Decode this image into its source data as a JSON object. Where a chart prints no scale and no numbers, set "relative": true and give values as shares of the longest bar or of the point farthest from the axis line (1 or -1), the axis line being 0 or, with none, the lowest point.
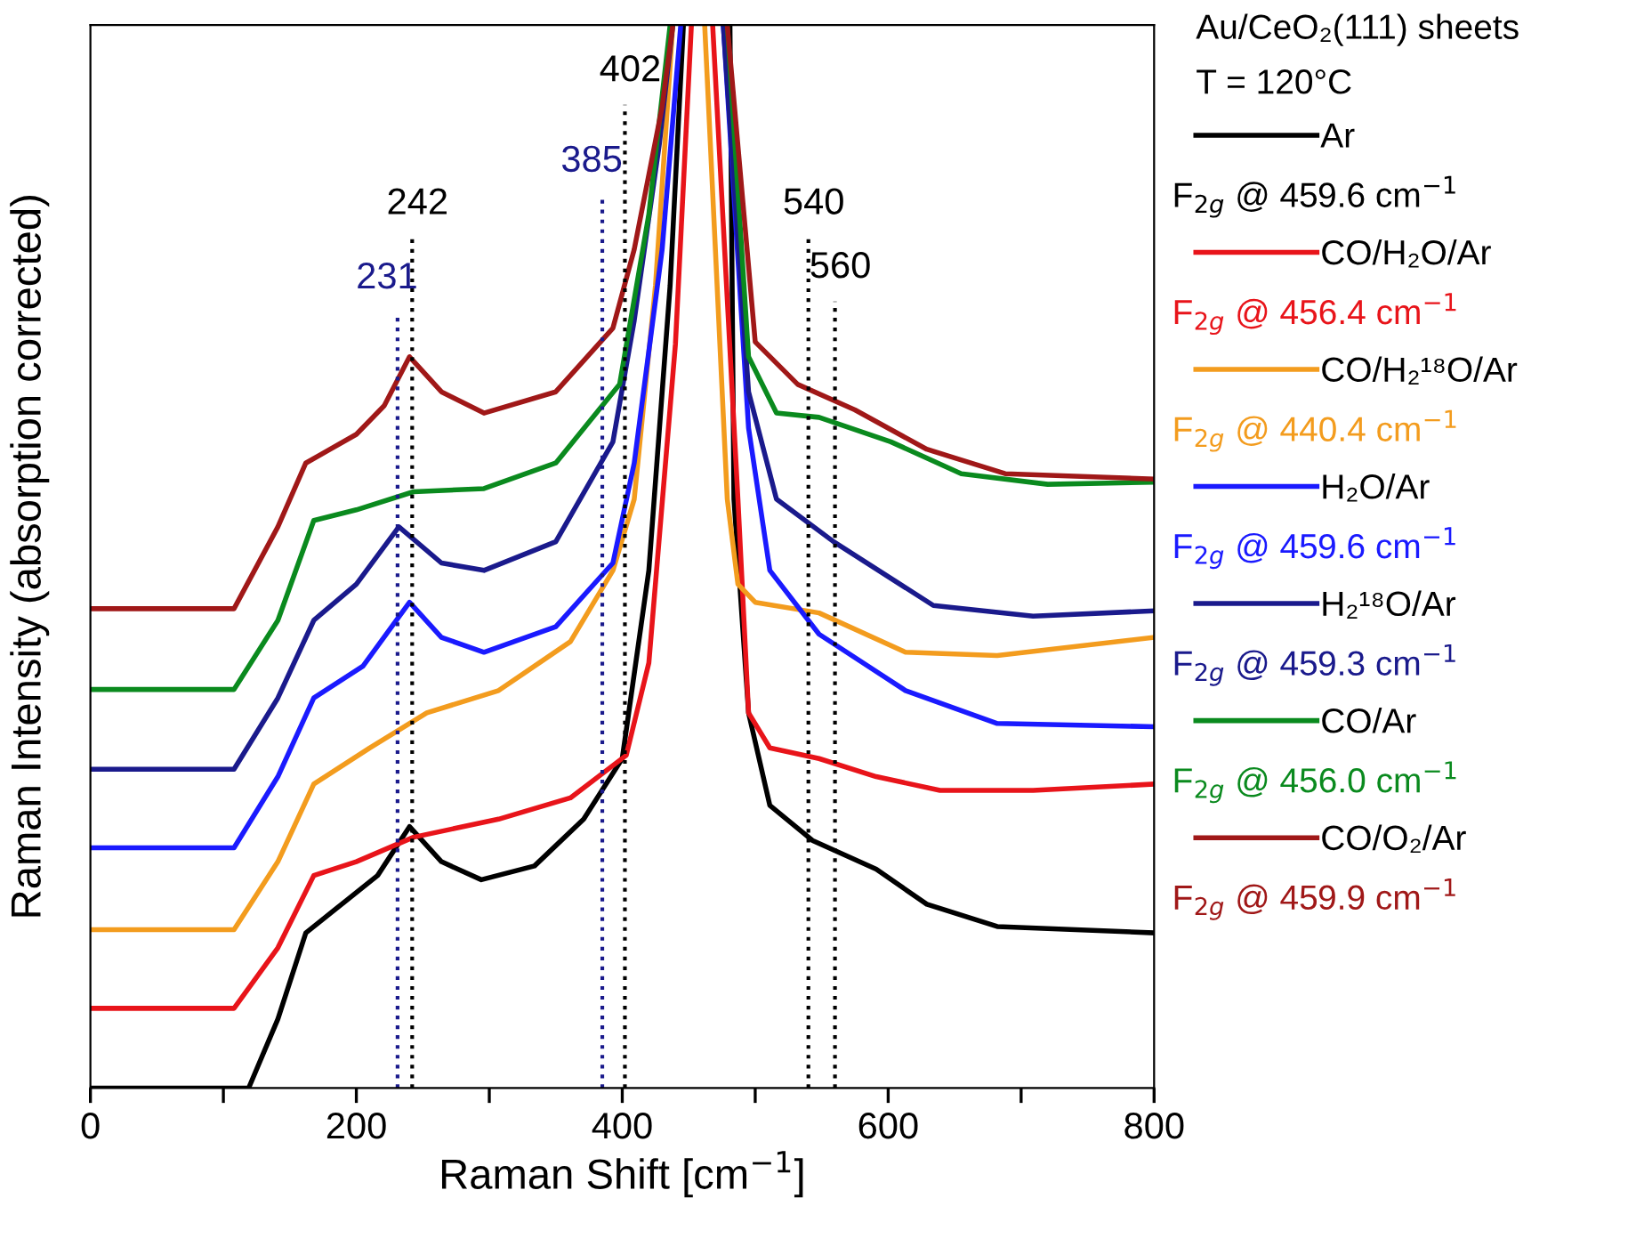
{
  "chart_data": {
    "type": "line",
    "relative": true,
    "xlabel": "Raman Shift [cm$^{−1}$]",
    "ylabel": "Raman Intensity (absorption corrected)",
    "xlim": [
      0,
      800
    ],
    "xticks": [
      0,
      {
        "value": 100,
        "label": null
      },
      200,
      {
        "value": 300,
        "label": null
      },
      400,
      {
        "value": 500,
        "label": null
      },
      600,
      {
        "value": 700,
        "label": null
      },
      800
    ],
    "grid": false,
    "legend": "right",
    "line_style": "solid",
    "marker": "none",
    "legend_title": "Au/CeO₂(111) sheets\nT = 120°C",
    "annotations": [
      "F$_{2g}$ @ 459.6 cm$^{−1}$",
      "F$_{2g}$ @ 456.4 cm$^{−1}$",
      "F$_{2g}$ @ 440.4 cm$^{−1}$",
      "F$_{2g}$ @ 459.6 cm$^{−1}$",
      "F$_{2g}$ @ 459.3 cm$^{−1}$",
      "F$_{2g}$ @ 456.0 cm$^{−1}$",
      "F$_{2g}$ @ 459.9 cm$^{−1}$"
    ],
    "ref_lines": [
      {
        "axis": "x",
        "value": 231,
        "label": "231",
        "color": "#1a1a8c",
        "line_style": "dotted"
      },
      {
        "axis": "x",
        "value": 242,
        "label": "242",
        "color": "#000000",
        "line_style": "dotted"
      },
      {
        "axis": "x",
        "value": 385,
        "label": "385",
        "color": "#1a1a8c",
        "line_style": "dotted"
      },
      {
        "axis": "x",
        "value": 402,
        "label": "402",
        "color": "#000000",
        "line_style": "dotted"
      },
      {
        "axis": "x",
        "value": 540,
        "label": "540",
        "color": "#000000",
        "line_style": "dotted"
      },
      {
        "axis": "x",
        "value": 560,
        "label": "560",
        "color": "#000000",
        "line_style": "dotted"
      }
    ],
    "series": [
      {
        "name": "Ar",
        "color": "#000000",
        "x": [
          0,
          119,
          141,
          162,
          189,
          216,
          240,
          264,
          294,
          334,
          371,
          400,
          420,
          436,
          446,
          447,
          480,
          481,
          484,
          495,
          511,
          543,
          591,
          629,
          682,
          800
        ],
        "values": [
          0,
          0,
          0.065,
          0.146,
          0.173,
          0.2,
          0.246,
          0.213,
          0.196,
          0.209,
          0.253,
          0.31,
          0.487,
          0.755,
          1,
          null,
          null,
          1,
          0.554,
          0.353,
          0.266,
          0.233,
          0.206,
          0.173,
          0.152,
          0.146
        ]
      },
      {
        "name": "CO/H₂O/Ar",
        "color": "#e8141a",
        "x": [
          0,
          108,
          141,
          168,
          200,
          243,
          307,
          361,
          403,
          420,
          440,
          452,
          453,
          467,
          468,
          487,
          495,
          511,
          548,
          591,
          639,
          709,
          800
        ],
        "values": [
          0.075,
          0.075,
          0.132,
          0.2,
          0.213,
          0.236,
          0.253,
          0.273,
          0.313,
          0.4,
          0.7,
          1,
          null,
          null,
          1,
          0.554,
          0.353,
          0.32,
          0.31,
          0.293,
          0.28,
          0.28,
          0.286
        ]
      },
      {
        "name": "CO/H₂¹⁸O/Ar",
        "color": "#f39c1e",
        "x": [
          0,
          108,
          141,
          168,
          210,
          253,
          307,
          361,
          393,
          409,
          425,
          438,
          439,
          461,
          462,
          479,
          487,
          500,
          548,
          613,
          682,
          800
        ],
        "values": [
          0.149,
          0.149,
          0.213,
          0.286,
          0.32,
          0.353,
          0.374,
          0.42,
          0.487,
          0.554,
          0.755,
          1,
          null,
          null,
          1,
          0.554,
          0.474,
          0.457,
          0.447,
          0.41,
          0.407,
          0.424
        ]
      },
      {
        "name": "H₂O/Ar",
        "color": "#1a1aff",
        "x": [
          0,
          108,
          141,
          168,
          205,
          240,
          264,
          296,
          350,
          393,
          409,
          430,
          444,
          445,
          475,
          476,
          495,
          511,
          548,
          613,
          682,
          800
        ],
        "values": [
          0.226,
          0.226,
          0.293,
          0.367,
          0.397,
          0.457,
          0.424,
          0.41,
          0.434,
          0.494,
          0.588,
          0.789,
          1,
          null,
          null,
          1,
          0.621,
          0.487,
          0.427,
          0.374,
          0.343,
          0.34
        ]
      },
      {
        "name": "H₂¹⁸O/Ar",
        "color": "#1a1a8c",
        "x": [
          0,
          108,
          141,
          168,
          200,
          232,
          264,
          296,
          350,
          393,
          409,
          428,
          438,
          439,
          475,
          476,
          495,
          516,
          559,
          634,
          709,
          800
        ],
        "values": [
          0.3,
          0.3,
          0.367,
          0.44,
          0.474,
          0.528,
          0.494,
          0.487,
          0.514,
          0.608,
          0.722,
          0.889,
          1,
          null,
          null,
          1,
          0.655,
          0.554,
          0.514,
          0.454,
          0.444,
          0.449
        ]
      },
      {
        "name": "CO/Ar",
        "color": "#0a8a1e",
        "x": [
          0,
          108,
          141,
          168,
          200,
          243,
          296,
          350,
          398,
          420,
          436,
          437,
          478,
          479,
          495,
          516,
          548,
          602,
          655,
          720,
          800
        ],
        "values": [
          0.375,
          0.375,
          0.44,
          0.534,
          0.544,
          0.561,
          0.564,
          0.588,
          0.662,
          0.822,
          1,
          null,
          null,
          1,
          0.688,
          0.635,
          0.631,
          0.608,
          0.578,
          0.568,
          0.57
        ]
      },
      {
        "name": "CO/O₂/Ar",
        "color": "#a01818",
        "x": [
          0,
          108,
          141,
          162,
          200,
          221,
          240,
          264,
          296,
          350,
          393,
          409,
          430,
          438,
          439,
          478,
          479,
          500,
          532,
          575,
          629,
          688,
          800
        ],
        "values": [
          0.451,
          0.451,
          0.528,
          0.588,
          0.615,
          0.642,
          0.688,
          0.655,
          0.635,
          0.655,
          0.715,
          0.789,
          0.923,
          1,
          null,
          null,
          1,
          0.702,
          0.662,
          0.638,
          0.601,
          0.578,
          0.573
        ]
      }
    ]
  }
}
